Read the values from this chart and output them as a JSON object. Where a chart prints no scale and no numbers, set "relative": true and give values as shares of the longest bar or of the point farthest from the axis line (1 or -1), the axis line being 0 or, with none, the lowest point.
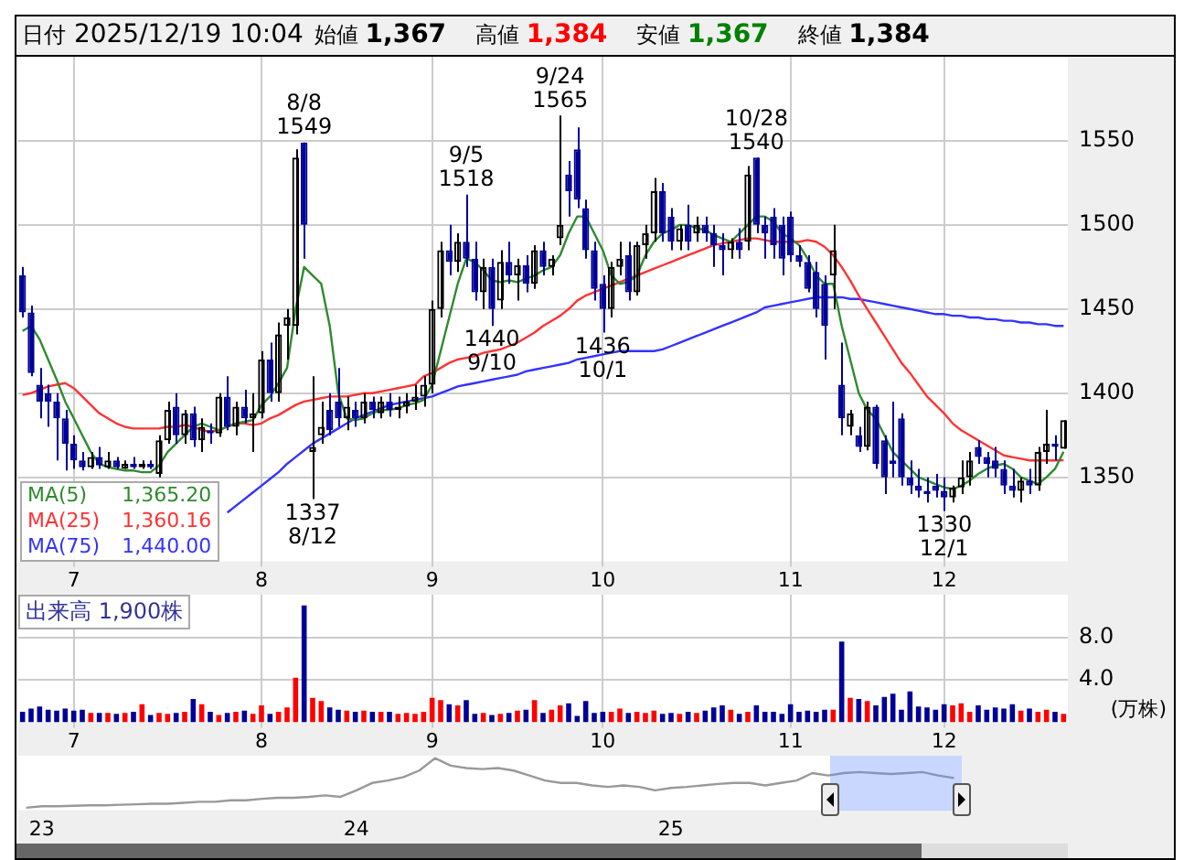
{
  "chart_data": [
    {
      "type": "candlestick",
      "title": "日付 2025/12/19 10:04",
      "subtitle": "始値 1,367 高値 1,384 安値 1,367 終値 1,384",
      "annotations": [
        "1,365.20",
        "1,360.16",
        "1,440.00",
        {
          "text": "8/8\n1549",
          "y": 1549
        },
        {
          "text": "1337\n8/12",
          "y": 1337
        },
        {
          "text": "9/5\n1518",
          "y": 1518
        },
        {
          "text": "1440\n9/10",
          "y": 1440
        },
        {
          "text": "9/24\n1565",
          "y": 1565
        },
        {
          "text": "1436\n10/1",
          "y": 1436
        },
        {
          "text": "10/28\n1540",
          "y": 1540
        },
        {
          "text": "1330\n12/1",
          "y": 1330
        }
      ],
      "categories": [
        null,
        null,
        null,
        null,
        null,
        null,
        "7",
        null,
        null,
        null,
        null,
        null,
        null,
        null,
        null,
        null,
        null,
        null,
        null,
        null,
        null,
        null,
        null,
        null,
        null,
        null,
        null,
        null,
        "8",
        null,
        null,
        null,
        null,
        null,
        null,
        null,
        null,
        null,
        null,
        null,
        null,
        null,
        null,
        null,
        null,
        null,
        null,
        null,
        "9",
        null,
        null,
        null,
        null,
        null,
        null,
        null,
        null,
        null,
        null,
        null,
        null,
        null,
        null,
        null,
        null,
        null,
        null,
        null,
        "10",
        null,
        null,
        null,
        null,
        null,
        null,
        null,
        null,
        null,
        null,
        null,
        null,
        null,
        null,
        null,
        null,
        null,
        null,
        null,
        null,
        null,
        "11",
        null,
        null,
        null,
        null,
        null,
        null,
        null,
        null,
        null,
        null,
        null,
        null,
        null,
        null,
        null,
        null,
        null,
        "12",
        null,
        null,
        null,
        null,
        null,
        null,
        null,
        null,
        null,
        null,
        null,
        null,
        null,
        null
      ],
      "ohlc": [
        [
          1470,
          1475,
          1445,
          1448
        ],
        [
          1448,
          1452,
          1410,
          1412
        ],
        [
          1405,
          1415,
          1385,
          1395
        ],
        [
          1400,
          1405,
          1380,
          1395
        ],
        [
          1395,
          1400,
          1360,
          1385
        ],
        [
          1385,
          1390,
          1354,
          1370
        ],
        [
          1370,
          1375,
          1355,
          1360
        ],
        [
          1360,
          1365,
          1354,
          1356
        ],
        [
          1356,
          1365,
          1355,
          1362
        ],
        [
          1362,
          1368,
          1355,
          1357
        ],
        [
          1356,
          1365,
          1355,
          1360
        ],
        [
          1360,
          1362,
          1355,
          1356
        ],
        [
          1355,
          1360,
          1355,
          1358
        ],
        [
          1358,
          1362,
          1355,
          1356
        ],
        [
          1356,
          1360,
          1355,
          1358
        ],
        [
          1358,
          1360,
          1355,
          1356
        ],
        [
          1352,
          1375,
          1350,
          1372
        ],
        [
          1372,
          1395,
          1370,
          1390
        ],
        [
          1392,
          1400,
          1370,
          1375
        ],
        [
          1375,
          1390,
          1370,
          1388
        ],
        [
          1388,
          1392,
          1368,
          1372
        ],
        [
          1372,
          1385,
          1365,
          1380
        ],
        [
          1378,
          1382,
          1370,
          1376
        ],
        [
          1376,
          1400,
          1374,
          1398
        ],
        [
          1398,
          1410,
          1378,
          1380
        ],
        [
          1380,
          1395,
          1375,
          1392
        ],
        [
          1392,
          1402,
          1382,
          1385
        ],
        [
          1385,
          1400,
          1365,
          1388
        ],
        [
          1388,
          1425,
          1385,
          1420
        ],
        [
          1420,
          1430,
          1395,
          1400
        ],
        [
          1400,
          1442,
          1395,
          1435
        ],
        [
          1440,
          1450,
          1420,
          1445
        ],
        [
          1440,
          1545,
          1435,
          1540
        ],
        [
          1549,
          1549,
          1480,
          1500
        ],
        [
          1365,
          1410,
          1337,
          1368
        ],
        [
          1375,
          1395,
          1370,
          1380
        ],
        [
          1390,
          1400,
          1375,
          1378
        ],
        [
          1395,
          1415,
          1380,
          1385
        ],
        [
          1385,
          1398,
          1378,
          1392
        ],
        [
          1390,
          1395,
          1380,
          1385
        ],
        [
          1385,
          1400,
          1382,
          1395
        ],
        [
          1395,
          1398,
          1385,
          1390
        ],
        [
          1388,
          1398,
          1385,
          1395
        ],
        [
          1395,
          1400,
          1386,
          1390
        ],
        [
          1390,
          1398,
          1385,
          1392
        ],
        [
          1392,
          1400,
          1388,
          1395
        ],
        [
          1395,
          1405,
          1390,
          1398
        ],
        [
          1398,
          1410,
          1392,
          1405
        ],
        [
          1405,
          1455,
          1400,
          1450
        ],
        [
          1450,
          1490,
          1445,
          1485
        ],
        [
          1485,
          1500,
          1470,
          1478
        ],
        [
          1478,
          1495,
          1472,
          1490
        ],
        [
          1490,
          1518,
          1475,
          1480
        ],
        [
          1480,
          1490,
          1455,
          1460
        ],
        [
          1460,
          1480,
          1450,
          1475
        ],
        [
          1475,
          1480,
          1440,
          1450
        ],
        [
          1455,
          1485,
          1450,
          1478
        ],
        [
          1478,
          1490,
          1465,
          1470
        ],
        [
          1470,
          1480,
          1455,
          1476
        ],
        [
          1476,
          1482,
          1460,
          1465
        ],
        [
          1465,
          1488,
          1462,
          1485
        ],
        [
          1485,
          1490,
          1470,
          1475
        ],
        [
          1475,
          1482,
          1470,
          1480
        ],
        [
          1492,
          1565,
          1488,
          1500
        ],
        [
          1530,
          1538,
          1505,
          1520
        ],
        [
          1545,
          1558,
          1510,
          1515
        ],
        [
          1510,
          1515,
          1480,
          1485
        ],
        [
          1485,
          1490,
          1455,
          1462
        ],
        [
          1465,
          1470,
          1436,
          1450
        ],
        [
          1450,
          1478,
          1445,
          1475
        ],
        [
          1475,
          1490,
          1470,
          1480
        ],
        [
          1482,
          1490,
          1455,
          1460
        ],
        [
          1460,
          1490,
          1458,
          1488
        ],
        [
          1488,
          1500,
          1480,
          1495
        ],
        [
          1495,
          1528,
          1490,
          1520
        ],
        [
          1520,
          1525,
          1490,
          1495
        ],
        [
          1505,
          1510,
          1485,
          1490
        ],
        [
          1490,
          1500,
          1485,
          1498
        ],
        [
          1500,
          1512,
          1485,
          1490
        ],
        [
          1495,
          1505,
          1490,
          1500
        ],
        [
          1500,
          1505,
          1490,
          1495
        ],
        [
          1495,
          1500,
          1475,
          1488
        ],
        [
          1488,
          1495,
          1470,
          1485
        ],
        [
          1485,
          1492,
          1480,
          1490
        ],
        [
          1490,
          1498,
          1480,
          1485
        ],
        [
          1490,
          1535,
          1485,
          1530
        ],
        [
          1540,
          1540,
          1495,
          1500
        ],
        [
          1500,
          1505,
          1480,
          1495
        ],
        [
          1505,
          1510,
          1480,
          1488
        ],
        [
          1500,
          1505,
          1470,
          1480
        ],
        [
          1505,
          1508,
          1478,
          1482
        ],
        [
          1482,
          1488,
          1475,
          1478
        ],
        [
          1478,
          1482,
          1460,
          1462
        ],
        [
          1472,
          1478,
          1445,
          1450
        ],
        [
          1465,
          1470,
          1420,
          1440
        ],
        [
          1470,
          1500,
          1450,
          1485
        ],
        [
          1405,
          1430,
          1375,
          1385
        ],
        [
          1380,
          1390,
          1375,
          1388
        ],
        [
          1375,
          1380,
          1365,
          1368
        ],
        [
          1368,
          1395,
          1366,
          1392
        ],
        [
          1392,
          1393,
          1355,
          1358
        ],
        [
          1372,
          1375,
          1340,
          1350
        ],
        [
          1360,
          1395,
          1350,
          1358
        ],
        [
          1385,
          1388,
          1345,
          1350
        ],
        [
          1350,
          1360,
          1340,
          1345
        ],
        [
          1345,
          1355,
          1338,
          1342
        ],
        [
          1342,
          1350,
          1335,
          1340
        ],
        [
          1345,
          1352,
          1338,
          1342
        ],
        [
          1342,
          1350,
          1330,
          1338
        ],
        [
          1338,
          1345,
          1335,
          1344
        ],
        [
          1344,
          1360,
          1340,
          1350
        ],
        [
          1350,
          1365,
          1345,
          1360
        ],
        [
          1368,
          1372,
          1358,
          1362
        ],
        [
          1362,
          1365,
          1350,
          1358
        ],
        [
          1360,
          1368,
          1350,
          1355
        ],
        [
          1355,
          1360,
          1340,
          1345
        ],
        [
          1345,
          1355,
          1338,
          1342
        ],
        [
          1342,
          1350,
          1335,
          1348
        ],
        [
          1348,
          1355,
          1340,
          1345
        ],
        [
          1345,
          1368,
          1342,
          1365
        ],
        [
          1365,
          1390,
          1358,
          1370
        ],
        [
          1370,
          1375,
          1360,
          1368
        ],
        [
          1367,
          1384,
          1367,
          1384
        ]
      ],
      "series": [
        {
          "name": "MA(5)",
          "type": "line",
          "color": "#2e8b2e",
          "values": [
            1437,
            1440,
            1432,
            1420,
            1408,
            1395,
            1385,
            1375,
            1365,
            1358,
            1356,
            1355,
            1354,
            1354,
            1353,
            1353,
            1357,
            1365,
            1370,
            1375,
            1380,
            1382,
            1380,
            1378,
            1380,
            1382,
            1383,
            1384,
            1393,
            1398,
            1406,
            1415,
            1450,
            1475,
            1470,
            1465,
            1440,
            1400,
            1385,
            1384,
            1385,
            1388,
            1390,
            1390,
            1391,
            1393,
            1394,
            1396,
            1405,
            1425,
            1445,
            1465,
            1480,
            1478,
            1473,
            1467,
            1466,
            1467,
            1466,
            1468,
            1470,
            1473,
            1475,
            1482,
            1495,
            1505,
            1505,
            1495,
            1485,
            1470,
            1465,
            1466,
            1470,
            1482,
            1490,
            1495,
            1497,
            1500,
            1500,
            1498,
            1497,
            1494,
            1492,
            1490,
            1495,
            1500,
            1505,
            1505,
            1502,
            1495,
            1492,
            1488,
            1480,
            1470,
            1465,
            1465,
            1440,
            1420,
            1400,
            1390,
            1385,
            1375,
            1365,
            1360,
            1355,
            1350,
            1348,
            1346,
            1344,
            1343,
            1345,
            1348,
            1352,
            1355,
            1357,
            1358,
            1355,
            1350,
            1348,
            1346,
            1350,
            1355,
            1365.2
          ]
        },
        {
          "name": "MA(25)",
          "type": "line",
          "color": "#ff3333",
          "values": [
            1399,
            1400,
            1402,
            1404,
            1405,
            1406,
            1403,
            1398,
            1393,
            1388,
            1385,
            1382,
            1380,
            1379,
            1379,
            1379,
            1379,
            1380,
            1380,
            1381,
            1380,
            1378,
            1377,
            1378,
            1380,
            1382,
            1382,
            1381,
            1382,
            1385,
            1387,
            1390,
            1393,
            1395,
            1396,
            1397,
            1398,
            1398,
            1398,
            1399,
            1400,
            1400,
            1401,
            1402,
            1403,
            1404,
            1405,
            1410,
            1412,
            1415,
            1418,
            1420,
            1421,
            1422,
            1424,
            1425,
            1426,
            1428,
            1430,
            1433,
            1436,
            1440,
            1443,
            1446,
            1450,
            1455,
            1458,
            1460,
            1462,
            1464,
            1466,
            1468,
            1470,
            1472,
            1474,
            1476,
            1478,
            1480,
            1482,
            1484,
            1486,
            1488,
            1489,
            1490,
            1491,
            1492,
            1492,
            1491,
            1490,
            1490,
            1490,
            1490,
            1491,
            1490,
            1487,
            1482,
            1475,
            1467,
            1458,
            1450,
            1442,
            1434,
            1426,
            1418,
            1412,
            1405,
            1398,
            1393,
            1388,
            1382,
            1378,
            1375,
            1372,
            1369,
            1366,
            1363,
            1362,
            1361,
            1360,
            1360,
            1360,
            1360,
            1360.16
          ]
        },
        {
          "name": "MA(75)",
          "type": "line",
          "color": "#3333ff",
          "values": [
            null,
            null,
            null,
            null,
            null,
            null,
            null,
            null,
            null,
            null,
            null,
            null,
            null,
            null,
            null,
            null,
            null,
            null,
            null,
            null,
            null,
            null,
            null,
            null,
            1329,
            1333,
            1337,
            1341,
            1345,
            1349,
            1353,
            1358,
            1362,
            1366,
            1370,
            1373,
            1376,
            1379,
            1382,
            1385,
            1387,
            1389,
            1391,
            1393,
            1394,
            1395,
            1396,
            1397,
            1398,
            1400,
            1402,
            1404,
            1405,
            1406,
            1407,
            1408,
            1409,
            1410,
            1411,
            1413,
            1414,
            1415,
            1416,
            1417,
            1418,
            1420,
            1421,
            1422,
            1423,
            1424,
            1425,
            1425,
            1425,
            1425,
            1425,
            1426,
            1428,
            1430,
            1432,
            1434,
            1436,
            1438,
            1440,
            1442,
            1444,
            1446,
            1448,
            1451,
            1452,
            1453,
            1454,
            1455,
            1456,
            1457,
            1457,
            1457,
            1457,
            1456,
            1456,
            1455,
            1454,
            1453,
            1452,
            1451,
            1450,
            1449,
            1448,
            1447,
            1447,
            1446,
            1446,
            1445,
            1445,
            1444,
            1444,
            1443,
            1443,
            1442,
            1442,
            1441,
            1441,
            1440,
            1440
          ]
        }
      ],
      "ylim": [
        1300,
        1600
      ],
      "yticks": [
        1350,
        1400,
        1450,
        1500,
        1550
      ],
      "grid": true,
      "legend": "bottom left"
    },
    {
      "type": "bar",
      "title": "出来高 1,900株",
      "ylabel": "(万株)",
      "categories": [
        null,
        null,
        null,
        null,
        null,
        null,
        "7",
        null,
        null,
        null,
        null,
        null,
        null,
        null,
        null,
        null,
        null,
        null,
        null,
        null,
        null,
        null,
        null,
        null,
        null,
        null,
        null,
        null,
        "8",
        null,
        null,
        null,
        null,
        null,
        null,
        null,
        null,
        null,
        null,
        null,
        null,
        null,
        null,
        null,
        null,
        null,
        null,
        null,
        "9",
        null,
        null,
        null,
        null,
        null,
        null,
        null,
        null,
        null,
        null,
        null,
        null,
        null,
        null,
        null,
        null,
        null,
        null,
        null,
        "10",
        null,
        null,
        null,
        null,
        null,
        null,
        null,
        null,
        null,
        null,
        null,
        null,
        null,
        null,
        null,
        null,
        null,
        null,
        null,
        null,
        null,
        "11",
        null,
        null,
        null,
        null,
        null,
        null,
        null,
        null,
        null,
        null,
        null,
        null,
        null,
        null,
        null,
        null,
        null,
        "12",
        null,
        null,
        null,
        null,
        null,
        null,
        null,
        null,
        null,
        null,
        null,
        null,
        null,
        null
      ],
      "values": [
        1.0,
        1.3,
        1.5,
        1.2,
        1.1,
        1.3,
        1.1,
        1.2,
        0.9,
        0.9,
        0.9,
        0.8,
        0.9,
        1.0,
        1.7,
        0.7,
        0.9,
        0.8,
        0.9,
        1.0,
        2.2,
        1.7,
        1.0,
        0.7,
        0.9,
        1.0,
        1.1,
        0.8,
        1.6,
        0.8,
        1.0,
        1.4,
        4.2,
        11.0,
        2.3,
        2.0,
        1.4,
        1.2,
        1.1,
        1.0,
        1.1,
        1.0,
        1.0,
        1.0,
        0.8,
        0.9,
        0.8,
        1.0,
        2.3,
        2.1,
        1.7,
        1.6,
        2.1,
        0.8,
        0.9,
        0.7,
        0.8,
        0.9,
        1.1,
        1.2,
        2.1,
        0.9,
        1.2,
        1.6,
        1.8,
        0.6,
        2.0,
        0.9,
        1.0,
        1.0,
        1.3,
        0.9,
        1.0,
        0.9,
        1.1,
        0.8,
        0.9,
        0.8,
        1.0,
        0.9,
        1.1,
        1.4,
        1.6,
        1.2,
        0.8,
        1.0,
        1.6,
        1.0,
        1.0,
        0.8,
        1.7,
        1.0,
        1.1,
        1.0,
        1.2,
        1.2,
        7.6,
        2.3,
        2.2,
        2.0,
        1.6,
        2.4,
        2.7,
        1.2,
        2.9,
        1.5,
        1.4,
        1.2,
        1.7,
        1.6,
        1.8,
        1.0,
        1.6,
        1.2,
        1.4,
        1.3,
        1.7,
        1.1,
        1.3,
        1.0,
        1.2,
        1.0,
        0.8
      ],
      "colors": [
        "#000099",
        "#000099",
        "#000099",
        "#000099",
        "#000099",
        "#000099",
        "#000099",
        "#000099",
        "#ff0000",
        "#000099",
        "#ff0000",
        "#000099",
        "#ff0000",
        "#000099",
        "#ff0000",
        "#000099",
        "#ff0000",
        "#ff0000",
        "#000099",
        "#ff0000",
        "#000099",
        "#ff0000",
        "#000099",
        "#ff0000",
        "#000099",
        "#ff0000",
        "#000099",
        "#ff0000",
        "#ff0000",
        "#000099",
        "#ff0000",
        "#ff0000",
        "#ff0000",
        "#000099",
        "#ff0000",
        "#ff0000",
        "#000099",
        "#000099",
        "#ff0000",
        "#000099",
        "#ff0000",
        "#000099",
        "#ff0000",
        "#000099",
        "#ff0000",
        "#ff0000",
        "#ff0000",
        "#ff0000",
        "#ff0000",
        "#ff0000",
        "#000099",
        "#ff0000",
        "#000099",
        "#000099",
        "#ff0000",
        "#000099",
        "#ff0000",
        "#000099",
        "#ff0000",
        "#000099",
        "#ff0000",
        "#000099",
        "#ff0000",
        "#ff0000",
        "#000099",
        "#000099",
        "#000099",
        "#000099",
        "#000099",
        "#ff0000",
        "#ff0000",
        "#000099",
        "#ff0000",
        "#ff0000",
        "#ff0000",
        "#000099",
        "#000099",
        "#ff0000",
        "#000099",
        "#ff0000",
        "#000099",
        "#000099",
        "#000099",
        "#ff0000",
        "#000099",
        "#ff0000",
        "#000099",
        "#000099",
        "#000099",
        "#000099",
        "#000099",
        "#000099",
        "#000099",
        "#000099",
        "#000099",
        "#ff0000",
        "#000099",
        "#ff0000",
        "#000099",
        "#ff0000",
        "#000099",
        "#000099",
        "#000099",
        "#000099",
        "#000099",
        "#000099",
        "#000099",
        "#000099",
        "#000099",
        "#ff0000",
        "#ff0000",
        "#ff0000",
        "#000099",
        "#000099",
        "#000099",
        "#000099",
        "#000099",
        "#ff0000",
        "#000099",
        "#ff0000",
        "#ff0000",
        "#000099",
        "#ff0000"
      ],
      "ylim": [
        0,
        12
      ],
      "yticks": [
        {
          "value": 4,
          "label": "4.0"
        },
        {
          "value": 8,
          "label": "8.0"
        }
      ],
      "grid": true
    },
    {
      "type": "line",
      "relative": true,
      "color": "#999999",
      "tick_labels": "x",
      "categories": [
        null,
        "23",
        null,
        null,
        null,
        null,
        null,
        null,
        null,
        null,
        null,
        null,
        null,
        null,
        null,
        null,
        null,
        null,
        null,
        null,
        null,
        "24",
        null,
        null,
        null,
        null,
        null,
        null,
        null,
        null,
        null,
        null,
        null,
        null,
        null,
        null,
        null,
        null,
        null,
        null,
        null,
        "25",
        null,
        null,
        null,
        null,
        null,
        null,
        null,
        null,
        null,
        null,
        null,
        null,
        null,
        null,
        null,
        null,
        null,
        null
      ],
      "values": [
        0,
        0.03,
        0.03,
        0.04,
        0.05,
        0.05,
        0.06,
        0.07,
        0.08,
        0.08,
        0.1,
        0.12,
        0.12,
        0.15,
        0.15,
        0.18,
        0.2,
        0.2,
        0.22,
        0.25,
        0.22,
        0.35,
        0.5,
        0.55,
        0.62,
        0.75,
        1.0,
        0.85,
        0.8,
        0.78,
        0.8,
        0.75,
        0.65,
        0.55,
        0.5,
        0.5,
        0.45,
        0.42,
        0.45,
        0.42,
        0.35,
        0.4,
        0.42,
        0.45,
        0.48,
        0.5,
        0.5,
        0.45,
        0.5,
        0.55,
        0.7,
        0.65,
        0.7,
        0.72,
        0.7,
        0.68,
        0.7,
        0.72,
        0.65,
        0.6
      ]
    }
  ]
}
